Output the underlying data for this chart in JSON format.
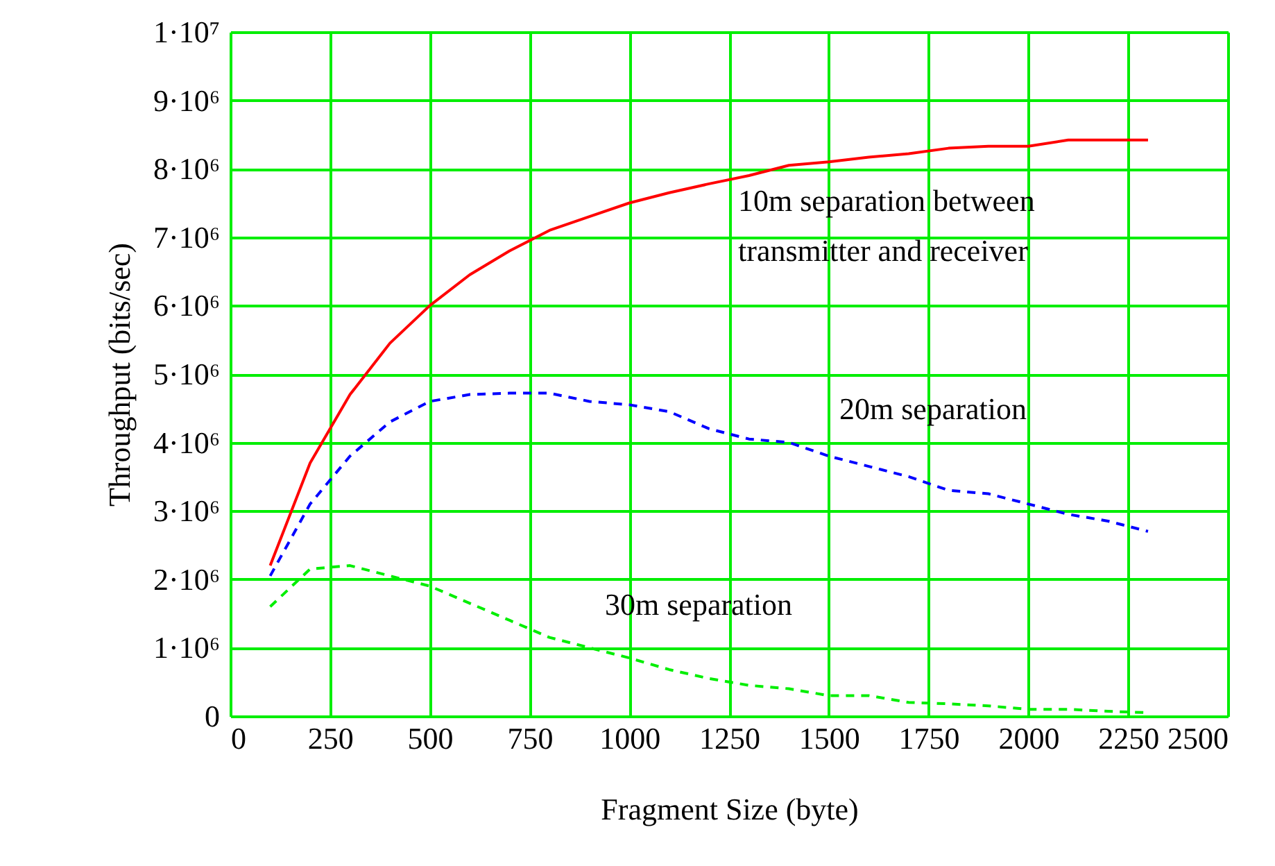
{
  "chart_data": {
    "type": "line",
    "xlabel": "Fragment Size (byte)",
    "ylabel": "Throughput (bits/sec)",
    "x": [
      100,
      200,
      300,
      400,
      500,
      600,
      700,
      800,
      900,
      1000,
      1100,
      1200,
      1300,
      1400,
      1500,
      1600,
      1700,
      1800,
      1900,
      2000,
      2100,
      2200,
      2300
    ],
    "series": [
      {
        "color": "#ff0000",
        "line_style": "solid",
        "values": [
          2200000,
          3700000,
          4700000,
          5450000,
          6000000,
          6450000,
          6800000,
          7100000,
          7300000,
          7500000,
          7650000,
          7780000,
          7900000,
          8050000,
          8100000,
          8170000,
          8220000,
          8300000,
          8330000,
          8330000,
          8420000,
          8420000,
          8420000
        ]
      },
      {
        "color": "#0000ff",
        "line_style": "dashed",
        "values": [
          2050000,
          3100000,
          3800000,
          4300000,
          4600000,
          4700000,
          4720000,
          4720000,
          4600000,
          4550000,
          4450000,
          4200000,
          4050000,
          4000000,
          3800000,
          3650000,
          3500000,
          3300000,
          3250000,
          3100000,
          2950000,
          2850000,
          2700000
        ]
      },
      {
        "color": "#00ee00",
        "line_style": "dashed",
        "values": [
          1600000,
          2150000,
          2200000,
          2050000,
          1900000,
          1650000,
          1400000,
          1150000,
          1000000,
          850000,
          680000,
          550000,
          450000,
          400000,
          300000,
          300000,
          200000,
          180000,
          150000,
          100000,
          100000,
          70000,
          50000
        ]
      }
    ],
    "annotations": [
      "10m separation between\ntransmitter and receiver",
      "20m separation",
      "30m separation"
    ],
    "xlim": [
      0,
      2500
    ],
    "ylim": [
      0,
      10000000
    ],
    "xticks": [
      0,
      250,
      500,
      750,
      1000,
      1250,
      1500,
      1750,
      2000,
      2250,
      2500
    ],
    "yticks": [
      0,
      {
        "value": 1000000,
        "label": "1·10⁶"
      },
      {
        "value": 2000000,
        "label": "2·10⁶"
      },
      {
        "value": 3000000,
        "label": "3·10⁶"
      },
      {
        "value": 4000000,
        "label": "4·10⁶"
      },
      {
        "value": 5000000,
        "label": "5·10⁶"
      },
      {
        "value": 6000000,
        "label": "6·10⁶"
      },
      {
        "value": 7000000,
        "label": "7·10⁶"
      },
      {
        "value": 8000000,
        "label": "8·10⁶"
      },
      {
        "value": 9000000,
        "label": "9·10⁶"
      },
      {
        "value": 10000000,
        "label": "1·10⁷"
      }
    ],
    "grid": true,
    "marker": "none"
  }
}
